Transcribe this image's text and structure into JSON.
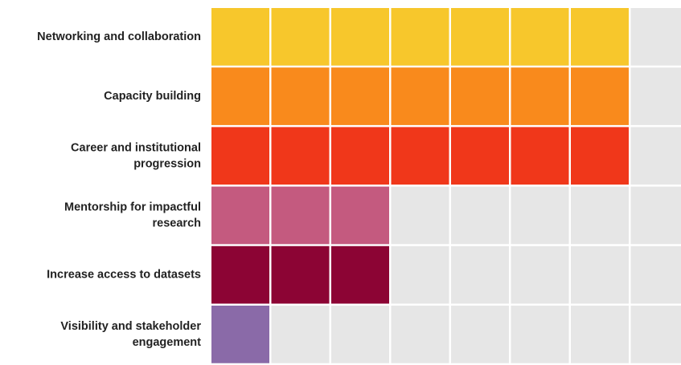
{
  "chart_data": {
    "type": "waffle",
    "categories": [
      "Networking and collaboration",
      "Capacity building",
      "Career and institutional\nprogression",
      "Mentorship for impactful\nresearch",
      "Increase access to datasets",
      "Visibility and stakeholder\nengagement"
    ],
    "values": [
      7,
      7,
      7,
      3,
      3,
      1
    ],
    "colors": [
      "#f7c72c",
      "#f98a1c",
      "#f0371a",
      "#c45a7f",
      "#8c0434",
      "#8a6aa8"
    ],
    "xlim": [
      0,
      8
    ]
  }
}
